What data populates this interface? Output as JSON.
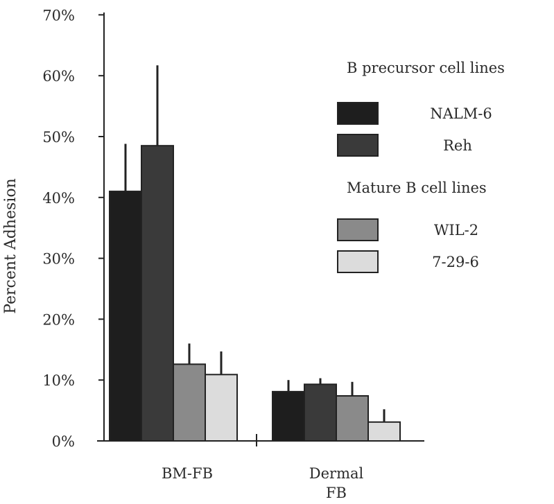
{
  "chart_data": {
    "type": "bar",
    "title": "",
    "xlabel": "",
    "ylabel": "Percent Adhesion",
    "ylim": [
      0,
      70
    ],
    "yticks": [
      "0%",
      "10%",
      "20%",
      "30%",
      "40%",
      "50%",
      "60%",
      "70%"
    ],
    "categories": [
      "BM-FB",
      "Dermal FB"
    ],
    "legend_groups": [
      "B precursor cell lines",
      "Mature B cell lines"
    ],
    "series": [
      {
        "name": "NALM-6",
        "group": 0,
        "color": "#1e1e1e",
        "values": [
          41.0,
          8.1
        ],
        "error_upper": [
          48.8,
          10.0
        ]
      },
      {
        "name": "Reh",
        "group": 0,
        "color": "#3a3a3a",
        "values": [
          48.5,
          9.3
        ],
        "error_upper": [
          61.7,
          10.3
        ]
      },
      {
        "name": "WIL-2",
        "group": 1,
        "color": "#8a8a8a",
        "values": [
          12.6,
          7.4
        ],
        "error_upper": [
          16.0,
          9.7
        ]
      },
      {
        "name": "7-29-6",
        "group": 1,
        "color": "#dcdcdc",
        "values": [
          10.9,
          3.1
        ],
        "error_upper": [
          14.7,
          5.2
        ]
      }
    ],
    "grid": false,
    "legend_placement": "top-right"
  }
}
